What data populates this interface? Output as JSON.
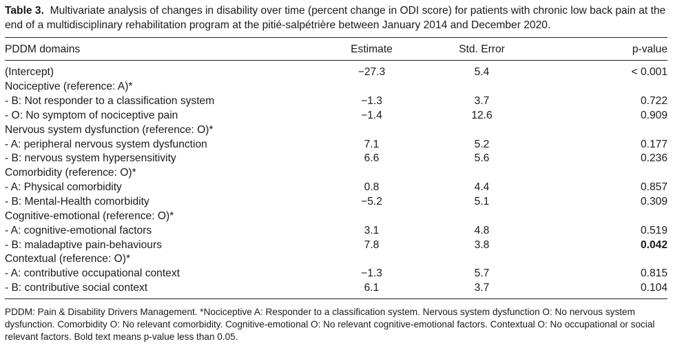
{
  "caption": {
    "label": "Table 3.",
    "text": "Multivariate analysis of changes in disability over time (percent change in ODI score) for patients with chronic low back pain at the end of a multidisciplinary rehabilitation program at the pitié-salpétrière between January 2014 and December 2020."
  },
  "table": {
    "headers": {
      "domain": "PDDM domains",
      "estimate": "Estimate",
      "std_error": "Std. Error",
      "p_value": "p-value"
    },
    "rows": [
      {
        "label": "(Intercept)",
        "estimate": "−27.3",
        "std_error": "5.4",
        "p_value": "< 0.001",
        "bold_p": false
      },
      {
        "label": "Nociceptive (reference: A)*",
        "estimate": "",
        "std_error": "",
        "p_value": "",
        "bold_p": false
      },
      {
        "label": " - B: Not responder to a classification system",
        "estimate": "−1.3",
        "std_error": "3.7",
        "p_value": "0.722",
        "bold_p": false
      },
      {
        "label": " - O: No symptom of nociceptive pain",
        "estimate": "−1.4",
        "std_error": "12.6",
        "p_value": "0.909",
        "bold_p": false
      },
      {
        "label": "Nervous system dysfunction (reference: O)*",
        "estimate": "",
        "std_error": "",
        "p_value": "",
        "bold_p": false
      },
      {
        "label": " - A: peripheral nervous system dysfunction",
        "estimate": "7.1",
        "std_error": "5.2",
        "p_value": "0.177",
        "bold_p": false
      },
      {
        "label": " - B: nervous system hypersensitivity",
        "estimate": "6.6",
        "std_error": "5.6",
        "p_value": "0.236",
        "bold_p": false
      },
      {
        "label": "Comorbidity (reference: O)*",
        "estimate": "",
        "std_error": "",
        "p_value": "",
        "bold_p": false
      },
      {
        "label": " - A: Physical comorbidity",
        "estimate": "0.8",
        "std_error": "4.4",
        "p_value": "0.857",
        "bold_p": false
      },
      {
        "label": " - B: Mental-Health comorbidity",
        "estimate": "−5.2",
        "std_error": "5.1",
        "p_value": "0.309",
        "bold_p": false
      },
      {
        "label": "Cognitive-emotional (reference: O)*",
        "estimate": "",
        "std_error": "",
        "p_value": "",
        "bold_p": false
      },
      {
        "label": " - A: cognitive-emotional factors",
        "estimate": "3.1",
        "std_error": "4.8",
        "p_value": "0.519",
        "bold_p": false
      },
      {
        "label": " - B: maladaptive pain-behaviours",
        "estimate": "7.8",
        "std_error": "3.8",
        "p_value": "0.042",
        "bold_p": true
      },
      {
        "label": "Contextual (reference: O)*",
        "estimate": "",
        "std_error": "",
        "p_value": "",
        "bold_p": false
      },
      {
        "label": " - A: contributive occupational context",
        "estimate": "−1.3",
        "std_error": "5.7",
        "p_value": "0.815",
        "bold_p": false
      },
      {
        "label": " - B: contributive social context",
        "estimate": "6.1",
        "std_error": "3.7",
        "p_value": "0.104",
        "bold_p": false
      }
    ]
  },
  "footnote": "PDDM: Pain & Disability Drivers Management. *Nociceptive A: Responder to a classification system. Nervous system dysfunction O: No nervous system dysfunction. Comorbidity O: No relevant comorbidity. Cognitive-emotional O: No relevant cognitive-emotional factors. Contextual O: No occupational or social relevant factors. Bold text means p-value less than 0.05."
}
